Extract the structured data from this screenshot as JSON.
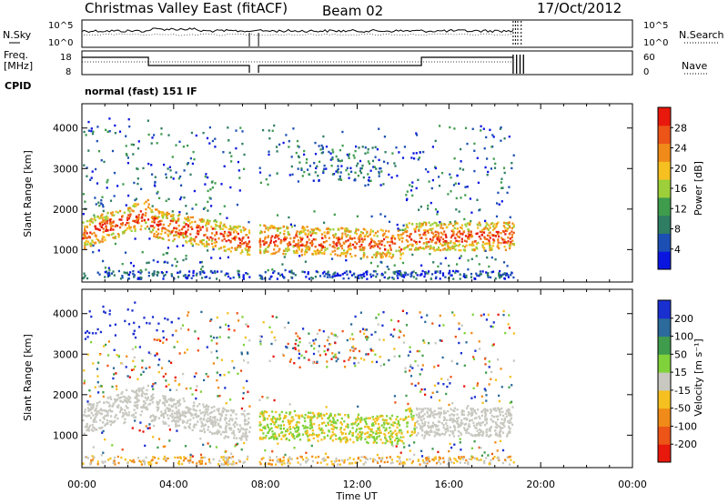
{
  "header": {
    "title": "Christmas Valley East (fitACF)",
    "beam": "Beam 02",
    "date": "17/Oct/2012"
  },
  "sky_panel": {
    "left_label": "N.Sky",
    "right_label": "N.Search",
    "left_ticks": [
      "10^5",
      "10^0"
    ],
    "right_ticks": [
      "10^5",
      "10^0"
    ]
  },
  "freq_panel": {
    "left_label_line1": "Freq.",
    "left_label_line2": "[MHz]",
    "right_label": "Nave",
    "left_ticks": [
      "18",
      "8"
    ],
    "right_ticks": [
      "60",
      "0"
    ]
  },
  "cpid": {
    "label": "CPID",
    "value": "normal (fast) 151 IF"
  },
  "chart_data": [
    {
      "type": "heatmap",
      "name": "power",
      "ylabel": "Slant Range [km]",
      "xlabel": "Time UT",
      "x_ticks": [
        "00:00",
        "04:00",
        "08:00",
        "12:00",
        "16:00",
        "20:00",
        "00:00"
      ],
      "y_ticks": [
        "1000",
        "2000",
        "3000",
        "4000"
      ],
      "ylim_km": [
        200,
        4600
      ],
      "xlim_hours": [
        0,
        24
      ],
      "colorbar": {
        "label": "Power [dB]",
        "ticks": [
          "4",
          "8",
          "12",
          "16",
          "20",
          "24",
          "28"
        ],
        "colors": [
          "#0a16e0",
          "#1c4fb4",
          "#2f7d62",
          "#3f9c4d",
          "#9ccf39",
          "#f5c020",
          "#f08a18",
          "#ec5418",
          "#e8180c"
        ]
      },
      "scatter_regions": [
        {
          "t_start": 0.0,
          "t_end": 2.9,
          "range_center": 1500,
          "note": "strong"
        },
        {
          "t_start": 2.9,
          "t_end": 7.3,
          "range_center": 1200,
          "note": "moderate"
        },
        {
          "t_start": 7.7,
          "t_end": 14.0,
          "range_center": 1250,
          "note": "strong"
        },
        {
          "t_start": 14.0,
          "t_end": 18.8,
          "range_center": 1300,
          "note": "strong"
        }
      ]
    },
    {
      "type": "heatmap",
      "name": "velocity",
      "ylabel": "Slant Range [km]",
      "xlabel": "Time UT",
      "x_ticks": [
        "00:00",
        "04:00",
        "08:00",
        "12:00",
        "16:00",
        "20:00",
        "00:00"
      ],
      "y_ticks": [
        "1000",
        "2000",
        "3000",
        "4000"
      ],
      "ylim_km": [
        200,
        4600
      ],
      "xlim_hours": [
        0,
        24
      ],
      "colorbar": {
        "label": "Velocity [m s⁻¹]",
        "ticks": [
          "200",
          "100",
          "50",
          "15",
          "-15",
          "-50",
          "-100",
          "-200"
        ],
        "colors": [
          "#1a2fd0",
          "#2b6a9a",
          "#3f9c4d",
          "#7fd23a",
          "#c8c8c0",
          "#f5c020",
          "#f08a18",
          "#ec5418",
          "#e8180c"
        ]
      }
    }
  ]
}
